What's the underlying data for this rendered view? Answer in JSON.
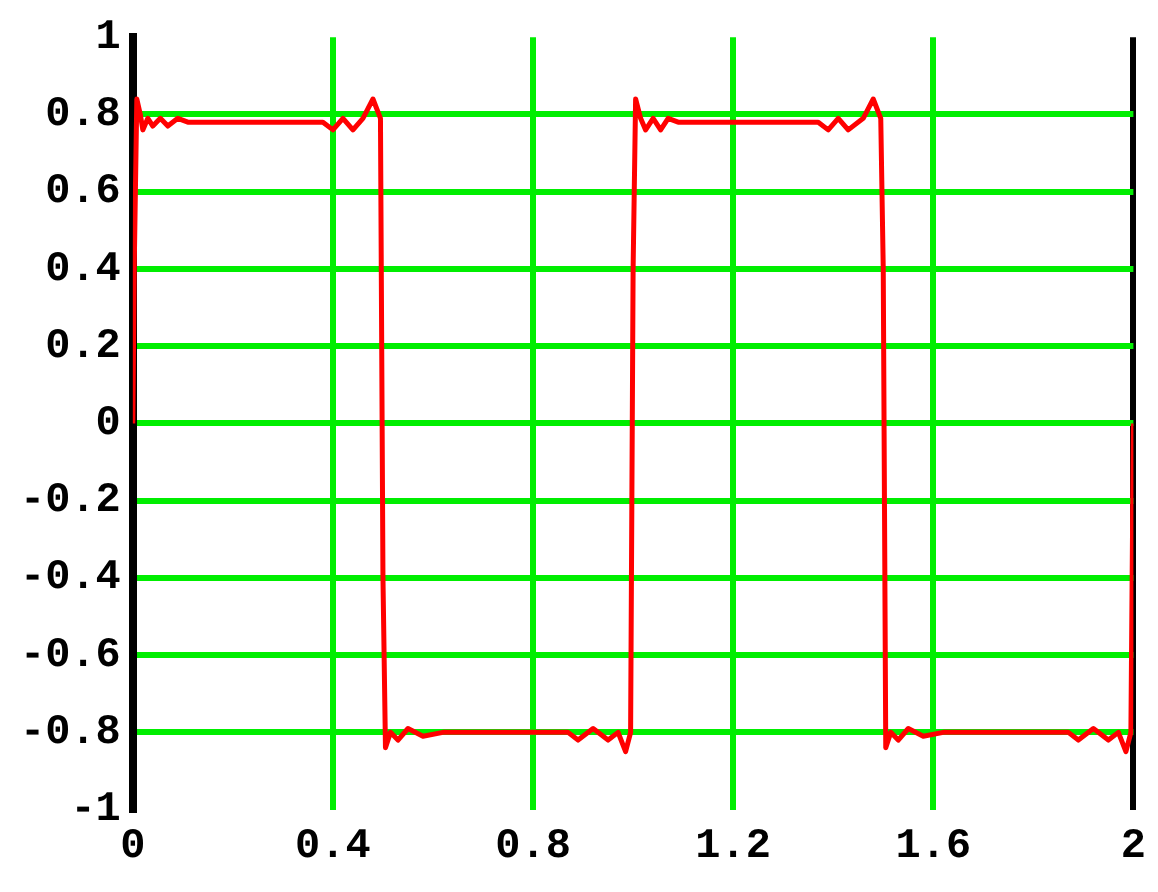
{
  "chart_data": {
    "type": "line",
    "x": [
      0,
      0.003,
      0.008,
      0.015,
      0.02,
      0.03,
      0.04,
      0.055,
      0.07,
      0.09,
      0.11,
      0.38,
      0.4,
      0.42,
      0.44,
      0.46,
      0.48,
      0.495,
      0.5,
      0.505,
      0.515,
      0.53,
      0.55,
      0.58,
      0.62,
      0.87,
      0.89,
      0.92,
      0.95,
      0.97,
      0.985,
      0.995,
      1,
      1.005,
      1.015,
      1.025,
      1.04,
      1.055,
      1.07,
      1.09,
      1.37,
      1.39,
      1.41,
      1.43,
      1.46,
      1.48,
      1.495,
      1.5,
      1.505,
      1.515,
      1.53,
      1.55,
      1.58,
      1.62,
      1.87,
      1.89,
      1.92,
      1.95,
      1.97,
      1.985,
      1.995,
      2
    ],
    "series": [
      {
        "color": "#ff0000",
        "values": [
          0,
          0.42,
          0.84,
          0.8,
          0.76,
          0.79,
          0.77,
          0.79,
          0.77,
          0.79,
          0.78,
          0.78,
          0.76,
          0.79,
          0.76,
          0.79,
          0.84,
          0.79,
          -0.4,
          -0.84,
          -0.8,
          -0.82,
          -0.79,
          -0.81,
          -0.8,
          -0.8,
          -0.82,
          -0.79,
          -0.82,
          -0.8,
          -0.85,
          -0.8,
          0.4,
          0.84,
          0.79,
          0.76,
          0.79,
          0.76,
          0.79,
          0.78,
          0.78,
          0.76,
          0.79,
          0.76,
          0.79,
          0.84,
          0.79,
          0.4,
          -0.84,
          -0.8,
          -0.82,
          -0.79,
          -0.81,
          -0.8,
          -0.8,
          -0.82,
          -0.79,
          -0.82,
          -0.8,
          -0.85,
          -0.8,
          0
        ]
      }
    ],
    "xlim": [
      0,
      2
    ],
    "xticks": [
      0,
      0.4,
      0.8,
      1.2,
      1.6,
      2
    ],
    "ylim": [
      -1,
      1
    ],
    "yticks": [
      -1,
      -0.8,
      -0.6,
      -0.4,
      -0.2,
      0,
      0.2,
      0.4,
      0.6,
      0.8,
      1
    ],
    "grid": true,
    "legend": false,
    "marker": "none",
    "line_style": "solid"
  }
}
